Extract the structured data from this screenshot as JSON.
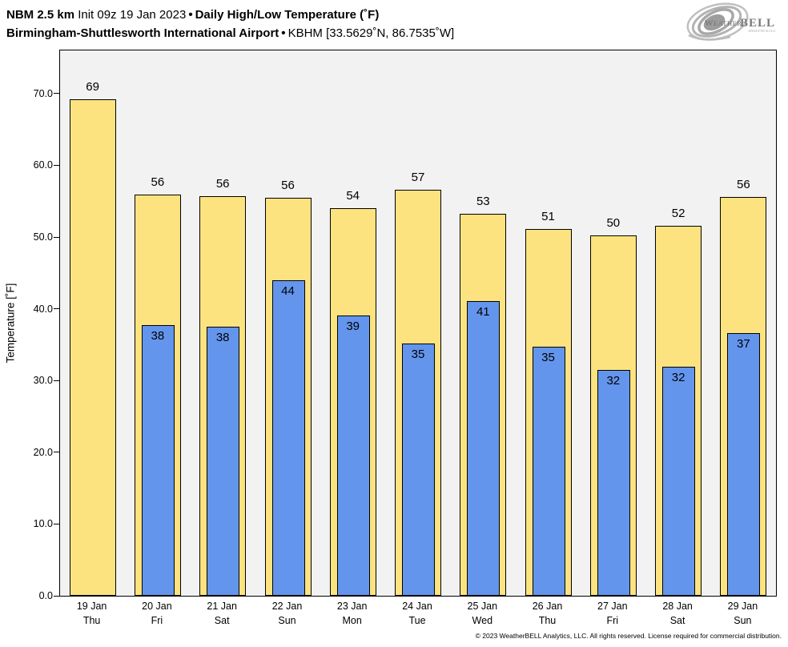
{
  "header": {
    "model": "NBM 2.5 km",
    "init": "Init 09z 19 Jan 2023",
    "bullet": "•",
    "product": "Daily High/Low Temperature (˚F)",
    "station_name": "Birmingham-Shuttlesworth International Airport",
    "station_id": "KBHM [33.5629˚N, 86.7535˚W]"
  },
  "logo": {
    "brand_weather": "Weather",
    "brand_bell": "BELL",
    "brand_sub": "Analytics LLC"
  },
  "footer": {
    "copyright": "© 2023 WeatherBELL Analytics, LLC. All rights reserved. License required for commercial distribution."
  },
  "chart_data": {
    "type": "bar",
    "title": "Daily High/Low Temperature (˚F)",
    "ylabel": "Temperature [˚F]",
    "ylim": [
      0,
      76
    ],
    "grid": false,
    "legend": false,
    "plot_bg": "#f2f2f2",
    "yticks": [
      0,
      10,
      20,
      30,
      40,
      50,
      60,
      70
    ],
    "ytick_labels": [
      "0.0",
      "10.0",
      "20.0",
      "30.0",
      "40.0",
      "50.0",
      "60.0",
      "70.0"
    ],
    "categories": [
      "19 Jan",
      "20 Jan",
      "21 Jan",
      "22 Jan",
      "23 Jan",
      "24 Jan",
      "25 Jan",
      "26 Jan",
      "27 Jan",
      "28 Jan",
      "29 Jan"
    ],
    "weekdays": [
      "Thu",
      "Fri",
      "Sat",
      "Sun",
      "Mon",
      "Tue",
      "Wed",
      "Thu",
      "Fri",
      "Sat",
      "Sun"
    ],
    "series": [
      {
        "name": "High",
        "color": "#FCE380",
        "border": "#000000",
        "values": [
          69.2,
          55.9,
          55.7,
          55.5,
          54.0,
          56.6,
          53.2,
          51.1,
          50.2,
          51.6,
          55.6
        ],
        "labels": [
          "69",
          "56",
          "56",
          "56",
          "54",
          "57",
          "53",
          "51",
          "50",
          "52",
          "56"
        ]
      },
      {
        "name": "Low",
        "color": "#6495ED",
        "border": "#000000",
        "values": [
          null,
          37.7,
          37.5,
          44.0,
          39.1,
          35.2,
          41.1,
          34.7,
          31.5,
          31.9,
          36.6
        ],
        "labels": [
          null,
          "38",
          "38",
          "44",
          "39",
          "35",
          "41",
          "35",
          "32",
          "32",
          "37"
        ]
      }
    ]
  }
}
